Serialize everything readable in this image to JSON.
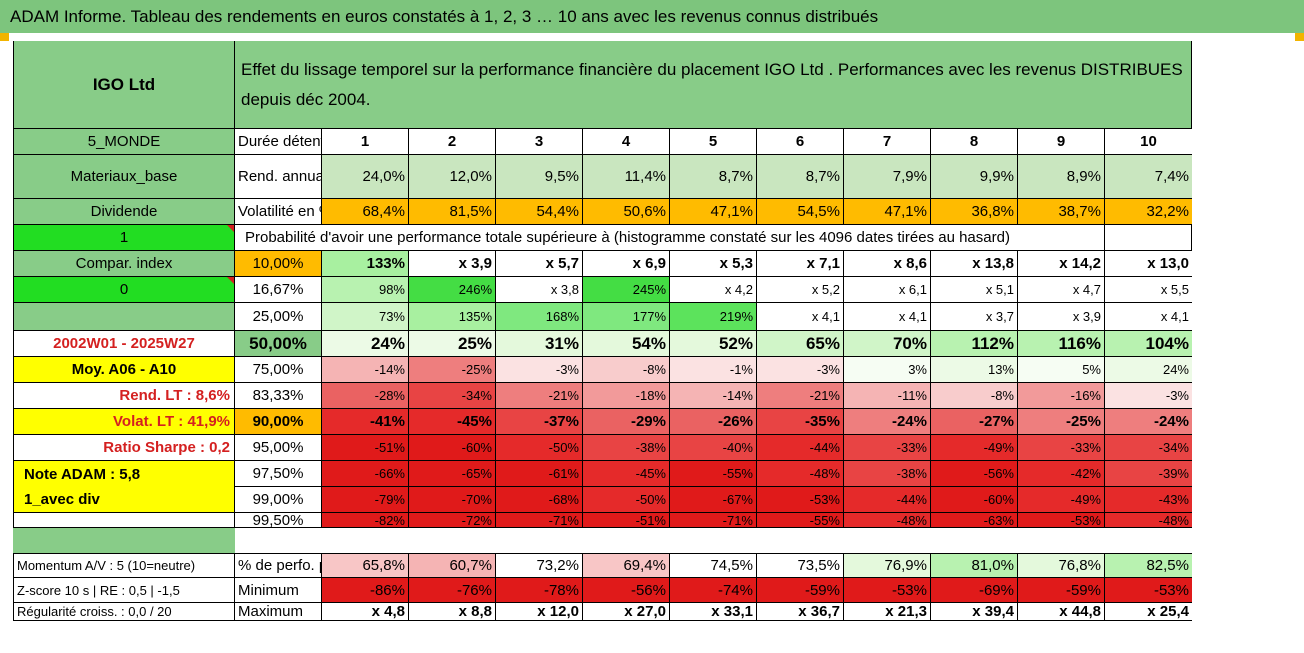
{
  "title": "ADAM Informe. Tableau des rendements en euros constatés à 1, 2, 3 … 10 ans avec les revenus connus distribués",
  "header": {
    "fund": "IGO Ltd",
    "description": "Effet du lissage temporel sur la performance financière du placement IGO Ltd . Performances avec les revenus DISTRIBUES depuis déc 2004."
  },
  "left": {
    "zone": "5_MONDE",
    "sector": "Materiaux_base",
    "dividend": "Dividende",
    "dividend_flag": "1",
    "compar_index": "Compar. index",
    "compar_flag": "0",
    "period": "2002W01 - 2025W27",
    "moy": "Moy. A06 - A10",
    "rend_lt": "Rend. LT :   8,6%",
    "volat_lt": "Volat. LT :   41,9%",
    "sharpe": "Ratio Sharpe :   0,2",
    "note": "Note ADAM : 5,8",
    "div_mode": "1_avec div"
  },
  "duration_label": "Durée détention (an)",
  "years": [
    "1",
    "2",
    "3",
    "4",
    "5",
    "6",
    "7",
    "8",
    "9",
    "10"
  ],
  "rend_label": "Rend. annualisé en %",
  "rend": [
    "24,0%",
    "12,0%",
    "9,5%",
    "11,4%",
    "8,7%",
    "8,7%",
    "7,9%",
    "9,9%",
    "8,9%",
    "7,4%"
  ],
  "vol_label": "Volatilité en %",
  "vol": [
    "68,4%",
    "81,5%",
    "54,4%",
    "50,6%",
    "47,1%",
    "54,5%",
    "47,1%",
    "36,8%",
    "38,7%",
    "32,2%"
  ],
  "prob_label": "Probabilité d'avoir une performance totale supérieure à (histogramme constaté sur les 4096 dates tirées au hasard)",
  "quantile_rows": [
    {
      "q": "10,00%",
      "v": [
        "133%",
        "x 3,9",
        "x 5,7",
        "x 6,9",
        "x 5,3",
        "x 7,1",
        "x 8,6",
        "x 13,8",
        "x 14,2",
        "x 13,0"
      ]
    },
    {
      "q": "16,67%",
      "v": [
        "98%",
        "246%",
        "x 3,8",
        "245%",
        "x 4,2",
        "x 5,2",
        "x 6,1",
        "x 5,1",
        "x 4,7",
        "x 5,5"
      ]
    },
    {
      "q": "25,00%",
      "v": [
        "73%",
        "135%",
        "168%",
        "177%",
        "219%",
        "x 4,1",
        "x 4,1",
        "x 3,7",
        "x 3,9",
        "x 4,1"
      ]
    },
    {
      "q": "50,00%",
      "v": [
        "24%",
        "25%",
        "31%",
        "54%",
        "52%",
        "65%",
        "70%",
        "112%",
        "116%",
        "104%"
      ]
    },
    {
      "q": "75,00%",
      "v": [
        "-14%",
        "-25%",
        "-3%",
        "-8%",
        "-1%",
        "-3%",
        "3%",
        "13%",
        "5%",
        "24%"
      ]
    },
    {
      "q": "83,33%",
      "v": [
        "-28%",
        "-34%",
        "-21%",
        "-18%",
        "-14%",
        "-21%",
        "-11%",
        "-8%",
        "-16%",
        "-3%"
      ]
    },
    {
      "q": "90,00%",
      "v": [
        "-41%",
        "-45%",
        "-37%",
        "-29%",
        "-26%",
        "-35%",
        "-24%",
        "-27%",
        "-25%",
        "-24%"
      ]
    },
    {
      "q": "95,00%",
      "v": [
        "-51%",
        "-60%",
        "-50%",
        "-38%",
        "-40%",
        "-44%",
        "-33%",
        "-49%",
        "-33%",
        "-34%"
      ]
    },
    {
      "q": "97,50%",
      "v": [
        "-66%",
        "-65%",
        "-61%",
        "-45%",
        "-55%",
        "-48%",
        "-38%",
        "-56%",
        "-42%",
        "-39%"
      ]
    },
    {
      "q": "99,00%",
      "v": [
        "-79%",
        "-70%",
        "-68%",
        "-50%",
        "-67%",
        "-53%",
        "-44%",
        "-60%",
        "-49%",
        "-43%"
      ]
    },
    {
      "q": "99,50%",
      "v": [
        "-82%",
        "-72%",
        "-71%",
        "-51%",
        "-71%",
        "-55%",
        "-48%",
        "-63%",
        "-53%",
        "-48%"
      ]
    }
  ],
  "bottom": {
    "momentum": "Momentum A/V : 5 (10=neutre)",
    "zscore": "Z-score 10 s | RE : 0,5 | -1,5",
    "regularite": "Régularité croiss. : 0,0 / 20",
    "pos_label": "% de perfo. positive",
    "pos": [
      "65,8%",
      "60,7%",
      "73,2%",
      "69,4%",
      "74,5%",
      "73,5%",
      "76,9%",
      "81,0%",
      "76,8%",
      "82,5%"
    ],
    "min_label": "Minimum",
    "min": [
      "-86%",
      "-76%",
      "-78%",
      "-56%",
      "-74%",
      "-59%",
      "-53%",
      "-69%",
      "-59%",
      "-53%"
    ],
    "max_label": "Maximum",
    "max": [
      "x 4,8",
      "x 8,8",
      "x 12,0",
      "x 27,0",
      "x 33,1",
      "x 36,7",
      "x 21,3",
      "x 39,4",
      "x 44,8",
      "x 25,4"
    ]
  },
  "colors": {
    "title_bg": "#7dc57d",
    "label_bg": "#88cc88",
    "bright_green": "#22dd22",
    "yellow": "#ffff00",
    "orange": "#ffbb00",
    "light_green": "#c9e6bf",
    "label_red": "#d42020"
  }
}
